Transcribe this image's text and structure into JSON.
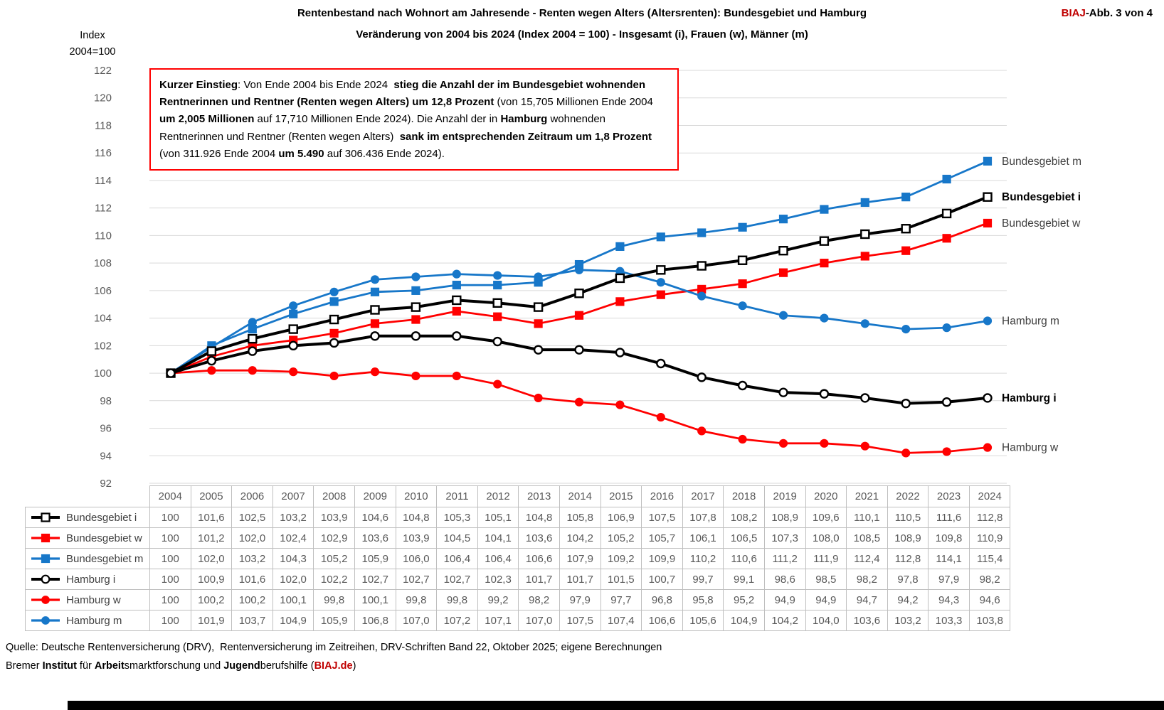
{
  "header": {
    "title_line1": "Rentenbestand nach Wohnort am Jahresende - Renten wegen Alters (Altersrenten): Bundesgebiet und Hamburg",
    "title_line2": "Veränderung von 2004 bis 2024 (Index 2004 = 100)  -  Insgesamt (i), Frauen (w), Männer (m)",
    "fig_label_segments": [
      {
        "t": "BIAJ",
        "b": true,
        "c": "#C00000"
      },
      {
        "t": "-Abb. 3 von 4",
        "b": true
      }
    ]
  },
  "axis": {
    "title_line1": "Index",
    "title_line2": "2004=100"
  },
  "callout": {
    "segments": [
      {
        "t": "Kurzer Einstieg",
        "b": true
      },
      {
        "t": ": Von Ende 2004 bis Ende 2024 ",
        "b": false
      },
      {
        "t": " stieg die Anzahl der im Bundesgebiet wohnenden Rentnerinnen und Rentner (Renten wegen Alters) um 12,8 Prozent",
        "b": true
      },
      {
        "t": " (von 15,705 Millionen Ende 2004 ",
        "b": false
      },
      {
        "t": "um 2,005 Millionen",
        "b": true
      },
      {
        "t": " auf 17,710 Millionen Ende 2024). Die Anzahl der in ",
        "b": false
      },
      {
        "t": "Hamburg",
        "b": true
      },
      {
        "t": " wohnenden Rentnerinnen und Rentner (Renten wegen Alters) ",
        "b": false
      },
      {
        "t": " sank im entsprechenden Zeitraum um 1,8 Prozent",
        "b": true
      },
      {
        "t": " (von 311.926 Ende 2004 ",
        "b": false
      },
      {
        "t": "um 5.490",
        "b": true
      },
      {
        "t": " auf 306.436 Ende 2024).",
        "b": false
      }
    ]
  },
  "chart_data": {
    "type": "line",
    "x": [
      2004,
      2005,
      2006,
      2007,
      2008,
      2009,
      2010,
      2011,
      2012,
      2013,
      2014,
      2015,
      2016,
      2017,
      2018,
      2019,
      2020,
      2021,
      2022,
      2023,
      2024
    ],
    "ylim": [
      92,
      122
    ],
    "ytick_step": 2,
    "grid": true,
    "legend_position": "right-end-labels",
    "series": [
      {
        "name": "Bundesgebiet i",
        "color": "#000000",
        "marker": "square",
        "marker_fill": "#FFFFFF",
        "bold_label": true,
        "values": [
          100,
          101.6,
          102.5,
          103.2,
          103.9,
          104.6,
          104.8,
          105.3,
          105.1,
          104.8,
          105.8,
          106.9,
          107.5,
          107.8,
          108.2,
          108.9,
          109.6,
          110.1,
          110.5,
          111.6,
          112.8
        ]
      },
      {
        "name": "Bundesgebiet w",
        "color": "#FF0000",
        "marker": "square",
        "marker_fill": "",
        "bold_label": false,
        "values": [
          100,
          101.2,
          102.0,
          102.4,
          102.9,
          103.6,
          103.9,
          104.5,
          104.1,
          103.6,
          104.2,
          105.2,
          105.7,
          106.1,
          106.5,
          107.3,
          108.0,
          108.5,
          108.9,
          109.8,
          110.9
        ]
      },
      {
        "name": "Bundesgebiet m",
        "color": "#1777C9",
        "marker": "square",
        "marker_fill": "",
        "bold_label": false,
        "values": [
          100,
          102.0,
          103.2,
          104.3,
          105.2,
          105.9,
          106.0,
          106.4,
          106.4,
          106.6,
          107.9,
          109.2,
          109.9,
          110.2,
          110.6,
          111.2,
          111.9,
          112.4,
          112.8,
          114.1,
          115.4
        ]
      },
      {
        "name": "Hamburg i",
        "color": "#000000",
        "marker": "circle",
        "marker_fill": "#FFFFFF",
        "bold_label": true,
        "values": [
          100,
          100.9,
          101.6,
          102.0,
          102.2,
          102.7,
          102.7,
          102.7,
          102.3,
          101.7,
          101.7,
          101.5,
          100.7,
          99.7,
          99.1,
          98.6,
          98.5,
          98.2,
          97.8,
          97.9,
          98.2
        ]
      },
      {
        "name": "Hamburg w",
        "color": "#FF0000",
        "marker": "circle",
        "marker_fill": "",
        "bold_label": false,
        "values": [
          100,
          100.2,
          100.2,
          100.1,
          99.8,
          100.1,
          99.8,
          99.8,
          99.2,
          98.2,
          97.9,
          97.7,
          96.8,
          95.8,
          95.2,
          94.9,
          94.9,
          94.7,
          94.2,
          94.3,
          94.6
        ]
      },
      {
        "name": "Hamburg m",
        "color": "#1777C9",
        "marker": "circle",
        "marker_fill": "",
        "bold_label": false,
        "values": [
          100,
          101.9,
          103.7,
          104.9,
          105.9,
          106.8,
          107.0,
          107.2,
          107.1,
          107.0,
          107.5,
          107.4,
          106.6,
          105.6,
          104.9,
          104.2,
          104.0,
          103.6,
          103.2,
          103.3,
          103.8
        ]
      }
    ]
  },
  "table": {
    "years": [
      "2004",
      "2005",
      "2006",
      "2007",
      "2008",
      "2009",
      "2010",
      "2011",
      "2012",
      "2013",
      "2014",
      "2015",
      "2016",
      "2017",
      "2018",
      "2019",
      "2020",
      "2021",
      "2022",
      "2023",
      "2024"
    ],
    "rows": [
      {
        "label": "Bundesgebiet i",
        "values": [
          "100",
          "101,6",
          "102,5",
          "103,2",
          "103,9",
          "104,6",
          "104,8",
          "105,3",
          "105,1",
          "104,8",
          "105,8",
          "106,9",
          "107,5",
          "107,8",
          "108,2",
          "108,9",
          "109,6",
          "110,1",
          "110,5",
          "111,6",
          "112,8"
        ]
      },
      {
        "label": "Bundesgebiet w",
        "values": [
          "100",
          "101,2",
          "102,0",
          "102,4",
          "102,9",
          "103,6",
          "103,9",
          "104,5",
          "104,1",
          "103,6",
          "104,2",
          "105,2",
          "105,7",
          "106,1",
          "106,5",
          "107,3",
          "108,0",
          "108,5",
          "108,9",
          "109,8",
          "110,9"
        ]
      },
      {
        "label": "Bundesgebiet m",
        "values": [
          "100",
          "102,0",
          "103,2",
          "104,3",
          "105,2",
          "105,9",
          "106,0",
          "106,4",
          "106,4",
          "106,6",
          "107,9",
          "109,2",
          "109,9",
          "110,2",
          "110,6",
          "111,2",
          "111,9",
          "112,4",
          "112,8",
          "114,1",
          "115,4"
        ]
      },
      {
        "label": "Hamburg i",
        "values": [
          "100",
          "100,9",
          "101,6",
          "102,0",
          "102,2",
          "102,7",
          "102,7",
          "102,7",
          "102,3",
          "101,7",
          "101,7",
          "101,5",
          "100,7",
          "99,7",
          "99,1",
          "98,6",
          "98,5",
          "98,2",
          "97,8",
          "97,9",
          "98,2"
        ]
      },
      {
        "label": "Hamburg w",
        "values": [
          "100",
          "100,2",
          "100,2",
          "100,1",
          "99,8",
          "100,1",
          "99,8",
          "99,8",
          "99,2",
          "98,2",
          "97,9",
          "97,7",
          "96,8",
          "95,8",
          "95,2",
          "94,9",
          "94,9",
          "94,7",
          "94,2",
          "94,3",
          "94,6"
        ]
      },
      {
        "label": "Hamburg m",
        "values": [
          "100",
          "101,9",
          "103,7",
          "104,9",
          "105,9",
          "106,8",
          "107,0",
          "107,2",
          "107,1",
          "107,0",
          "107,5",
          "107,4",
          "106,6",
          "105,6",
          "104,9",
          "104,2",
          "104,0",
          "103,6",
          "103,2",
          "103,3",
          "103,8"
        ]
      }
    ]
  },
  "footer": {
    "source_segments": [
      {
        "t": "Quelle: Deutsche Rentenversicherung (DRV),  Rentenversicherung im Zeitreihen, DRV-Schriften Band 22, Oktober 2025; eigene Berechnungen",
        "b": false
      }
    ],
    "credit_segments": [
      {
        "t": "Bremer ",
        "b": false
      },
      {
        "t": "Institut",
        "b": true
      },
      {
        "t": " für ",
        "b": false
      },
      {
        "t": "Arbeit",
        "b": true
      },
      {
        "t": "smarktforschung und ",
        "b": false
      },
      {
        "t": "Jugend",
        "b": true
      },
      {
        "t": "berufshilfe (",
        "b": false
      },
      {
        "t": "BIAJ.de",
        "b": true,
        "c": "#C00000"
      },
      {
        "t": ")",
        "b": false
      }
    ]
  },
  "colors": {
    "callout_border": "#FF0000",
    "brand_red": "#C00000",
    "series_black": "#000000",
    "series_red": "#FF0000",
    "series_blue": "#1777C9",
    "grid": "#D9D9D9",
    "table_border": "#BFBFBF",
    "muted_text": "#595959"
  }
}
